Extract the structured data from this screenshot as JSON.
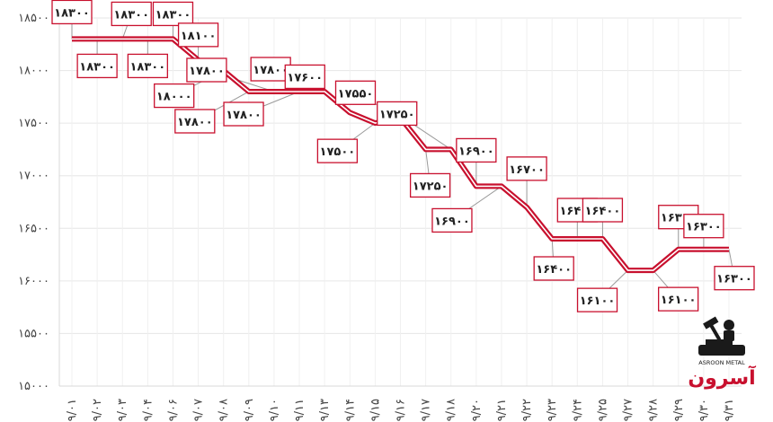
{
  "chart_data": {
    "type": "line",
    "title": "",
    "xlabel": "",
    "ylabel": "",
    "ylim": [
      15000,
      18500
    ],
    "y_ticks": [
      "۱۵۰۰۰",
      "۱۵۵۰۰",
      "۱۶۰۰۰",
      "۱۶۵۰۰",
      "۱۷۰۰۰",
      "۱۷۵۰۰",
      "۱۸۰۰۰",
      "۱۸۵۰۰"
    ],
    "grid": true,
    "legend": "none",
    "line_color": "#c8102e",
    "categories": [
      "۹/۰۱",
      "۹/۰۲",
      "۹/۰۳",
      "۹/۰۴",
      "۹/۰۶",
      "۹/۰۷",
      "۹/۰۸",
      "۹/۰۹",
      "۹/۱۰",
      "۹/۱۱",
      "۹/۱۳",
      "۹/۱۴",
      "۹/۱۵",
      "۹/۱۶",
      "۹/۱۷",
      "۹/۱۸",
      "۹/۲۰",
      "۹/۲۱",
      "۹/۲۲",
      "۹/۲۳",
      "۹/۲۴",
      "۹/۲۵",
      "۹/۲۷",
      "۹/۲۸",
      "۹/۲۹",
      "۹/۳۰",
      "۹/۳۱"
    ],
    "series": [
      {
        "values": [
          18300,
          18300,
          18300,
          18300,
          18300,
          18100,
          18000,
          17800,
          17800,
          17800,
          17800,
          17600,
          17500,
          17550,
          17250,
          17250,
          16900,
          16900,
          16700,
          16400,
          16400,
          16400,
          16100,
          16100,
          16300,
          16300,
          16300
        ],
        "labels": [
          "۱۸۳۰۰",
          "۱۸۳۰۰",
          "۱۸۳۰۰",
          "۱۸۳۰۰",
          "۱۸۳۰۰",
          "۱۸۱۰۰",
          "۱۸۰۰۰",
          "۱۷۸۰۰",
          "۱۷۸۰۰",
          "۱۷۸۰۰",
          "۱۷۸۰۰",
          "۱۷۶۰۰",
          "۱۷۵۰۰",
          "۱۷۵۵۰",
          "۱۷۲۵۰",
          "۱۷۲۵۰",
          "۱۶۹۰۰",
          "۱۶۹۰۰",
          "۱۶۷۰۰",
          "۱۶۴۰۰",
          "۱۶۴۰۰",
          "۱۶۴۰۰",
          "۱۶۱۰۰",
          "۱۶۱۰۰",
          "۱۶۳۰۰",
          "۱۶۳۰۰",
          "۱۶۳۰۰"
        ]
      }
    ]
  },
  "logo": {
    "caption": "ASROON METAL",
    "wordmark": "آسرون",
    "icon": "anvil-hammer-icon"
  }
}
